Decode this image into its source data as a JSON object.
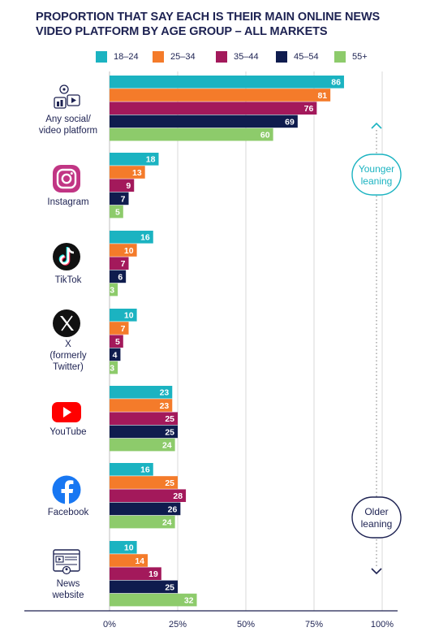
{
  "chart_data": {
    "type": "bar",
    "orientation": "horizontal",
    "title": "PROPORTION THAT SAY EACH IS THEIR MAIN ONLINE NEWS VIDEO PLATFORM BY AGE GROUP – ALL MARKETS",
    "title_lines": [
      "PROPORTION THAT SAY EACH IS THEIR MAIN ONLINE NEWS",
      "VIDEO PLATFORM BY AGE GROUP – ALL MARKETS"
    ],
    "categories": [
      "Any social/video platform",
      "Instagram",
      "TikTok",
      "X (formerly Twitter)",
      "YouTube",
      "Facebook",
      "News website"
    ],
    "category_label_lines": [
      [
        "Any social/",
        "video platform"
      ],
      [
        "Instagram"
      ],
      [
        "TikTok"
      ],
      [
        "X",
        "(formerly",
        "Twitter)"
      ],
      [
        "YouTube"
      ],
      [
        "Facebook"
      ],
      [
        "News",
        "website"
      ]
    ],
    "category_icons": [
      "social-video-platform-icon",
      "instagram-icon",
      "tiktok-icon",
      "x-icon",
      "youtube-icon",
      "facebook-icon",
      "news-website-icon"
    ],
    "series": [
      {
        "name": "18–24",
        "color": "#1bb3c1",
        "values": [
          86,
          18,
          16,
          10,
          23,
          16,
          10
        ]
      },
      {
        "name": "25–34",
        "color": "#f47b2a",
        "values": [
          81,
          13,
          10,
          7,
          23,
          25,
          14
        ]
      },
      {
        "name": "35–44",
        "color": "#a3195b",
        "values": [
          76,
          9,
          7,
          5,
          25,
          28,
          19
        ]
      },
      {
        "name": "45–54",
        "color": "#0f1c4e",
        "values": [
          69,
          7,
          6,
          4,
          25,
          26,
          25
        ]
      },
      {
        "name": "55+",
        "color": "#8dcb6b",
        "values": [
          60,
          5,
          3,
          3,
          24,
          24,
          32
        ]
      }
    ],
    "x_ticks": [
      "0%",
      "25%",
      "50%",
      "75%",
      "100%"
    ],
    "xlim": [
      0,
      100
    ],
    "grid": true,
    "legend_position": "top",
    "annotations": {
      "younger": [
        "Younger",
        "leaning"
      ],
      "older": [
        "Older",
        "leaning"
      ]
    },
    "colors": {
      "text": "#1d2252",
      "grid": "#d9d9d9",
      "younger_accent": "#1bb3c1",
      "older_accent": "#1d2252",
      "instagram": "#c13584",
      "youtube": "#ff0000",
      "facebook": "#1877f2",
      "dark_logo": "#111111"
    }
  }
}
